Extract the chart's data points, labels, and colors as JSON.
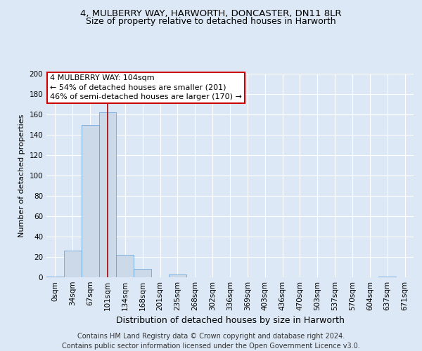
{
  "title": "4, MULBERRY WAY, HARWORTH, DONCASTER, DN11 8LR",
  "subtitle": "Size of property relative to detached houses in Harworth",
  "xlabel": "Distribution of detached houses by size in Harworth",
  "ylabel": "Number of detached properties",
  "bin_labels": [
    "0sqm",
    "34sqm",
    "67sqm",
    "101sqm",
    "134sqm",
    "168sqm",
    "201sqm",
    "235sqm",
    "268sqm",
    "302sqm",
    "336sqm",
    "369sqm",
    "403sqm",
    "436sqm",
    "470sqm",
    "503sqm",
    "537sqm",
    "570sqm",
    "604sqm",
    "637sqm",
    "671sqm"
  ],
  "bar_values": [
    1,
    26,
    150,
    162,
    22,
    8,
    0,
    3,
    0,
    0,
    0,
    0,
    0,
    0,
    0,
    0,
    0,
    0,
    0,
    1,
    0
  ],
  "bar_color": "#ccd9e8",
  "bar_edge_color": "#5b9bd5",
  "highlight_bar_index": 3,
  "highlight_line_color": "#aa0000",
  "ylim": [
    0,
    200
  ],
  "yticks": [
    0,
    20,
    40,
    60,
    80,
    100,
    120,
    140,
    160,
    180,
    200
  ],
  "annotation_text": "4 MULBERRY WAY: 104sqm\n← 54% of detached houses are smaller (201)\n46% of semi-detached houses are larger (170) →",
  "annotation_box_color": "#ffffff",
  "annotation_box_edge": "#cc0000",
  "footer_text": "Contains HM Land Registry data © Crown copyright and database right 2024.\nContains public sector information licensed under the Open Government Licence v3.0.",
  "background_color": "#dce8f5",
  "plot_bg_color": "#dce8f5",
  "grid_color": "#ffffff",
  "title_fontsize": 9.5,
  "subtitle_fontsize": 9,
  "xlabel_fontsize": 9,
  "ylabel_fontsize": 8,
  "tick_fontsize": 7.5,
  "footer_fontsize": 7,
  "ann_fontsize": 8
}
